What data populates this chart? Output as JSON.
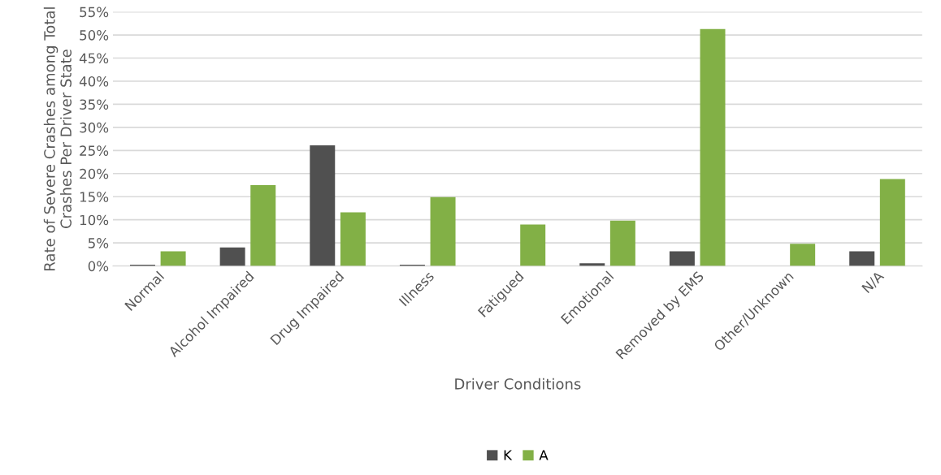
{
  "chart_data": {
    "type": "bar",
    "xlabel": "Driver Conditions",
    "ylabel": "Rate of Severe Crashes among Total Crashes Per Driver State",
    "categories": [
      "Normal",
      "Alcohol Impaired",
      "Drug Impaired",
      "Illness",
      "Fatigued",
      "Emotional",
      "Removed by EMS",
      "Other/Unknown",
      "N/A"
    ],
    "series": [
      {
        "name": "K",
        "color": "#505050",
        "values": [
          0.3,
          4.0,
          26.1,
          0.3,
          0,
          0.6,
          3.2,
          0,
          3.2
        ]
      },
      {
        "name": "A",
        "color": "#82b046",
        "values": [
          3.2,
          17.5,
          11.6,
          14.9,
          9.0,
          9.8,
          51.3,
          4.8,
          18.8
        ]
      }
    ],
    "ylim": [
      0,
      55
    ],
    "yticks": [
      {
        "value": 0,
        "label": "0%"
      },
      {
        "value": 5,
        "label": "5%"
      },
      {
        "value": 10,
        "label": "10%"
      },
      {
        "value": 15,
        "label": "15%"
      },
      {
        "value": 20,
        "label": "20%"
      },
      {
        "value": 25,
        "label": "25%"
      },
      {
        "value": 30,
        "label": "30%"
      },
      {
        "value": 35,
        "label": "35%"
      },
      {
        "value": 40,
        "label": "40%"
      },
      {
        "value": 45,
        "label": "45%"
      },
      {
        "value": 50,
        "label": "50%"
      },
      {
        "value": 55,
        "label": "55%"
      }
    ],
    "grid": "y",
    "legend": "bottom"
  }
}
